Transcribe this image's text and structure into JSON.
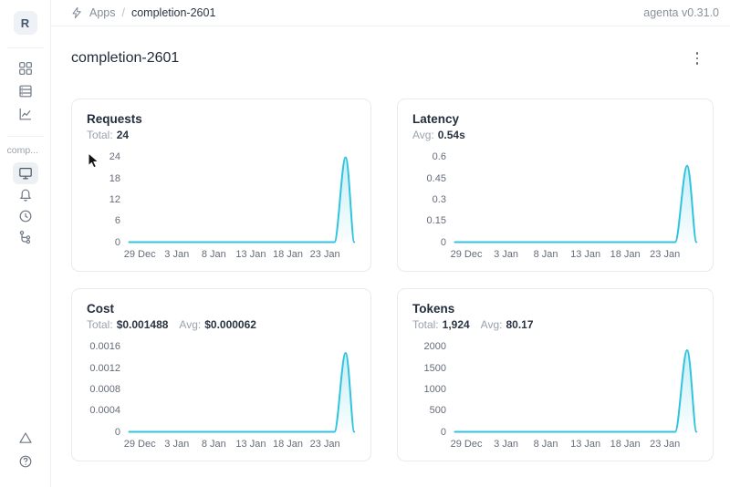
{
  "app": {
    "version_label": "agenta v0.31.0"
  },
  "breadcrumb": {
    "section": "Apps",
    "separator": "/",
    "current": "completion-2601"
  },
  "page": {
    "title": "completion-2601"
  },
  "sidebar": {
    "avatar_initial": "R",
    "app_label": "comp...",
    "icons": [
      "grid-icon",
      "list-icon",
      "line-chart-icon",
      "monitor-icon",
      "bell-icon",
      "history-icon",
      "tree-icon",
      "warning-triangle-icon",
      "help-icon"
    ],
    "selected_item": "overview"
  },
  "colors": {
    "accent_line": "#31c3de",
    "accent_fill": "rgba(49,195,222,0.22)",
    "card_border": "#e8eaee",
    "tick_text": "#646c78"
  },
  "chart_data": [
    {
      "type": "line",
      "title": "Requests",
      "stats": [
        {
          "label": "Total:",
          "value": "24"
        }
      ],
      "y_ticks": [
        "24",
        "18",
        "12",
        "6",
        "0"
      ],
      "y_max": 24,
      "x_ticks": [
        "29 Dec",
        "3 Jan",
        "8 Jan",
        "13 Jan",
        "18 Jan",
        "23 Jan"
      ],
      "points": [
        {
          "x": "28 Dec",
          "y": 0
        },
        {
          "x": "25 Jan",
          "y": 0
        },
        {
          "x": "26 Jan",
          "y": 24
        },
        {
          "x": "27 Jan",
          "y": 0
        }
      ],
      "peak": {
        "x": "26 Jan",
        "y": 24
      },
      "grid": false,
      "legend": false
    },
    {
      "type": "line",
      "title": "Latency",
      "stats": [
        {
          "label": "Avg:",
          "value": "0.54s"
        }
      ],
      "y_ticks": [
        "0.6",
        "0.45",
        "0.3",
        "0.15",
        "0"
      ],
      "y_max": 0.6,
      "x_ticks": [
        "29 Dec",
        "3 Jan",
        "8 Jan",
        "13 Jan",
        "18 Jan",
        "23 Jan"
      ],
      "points": [
        {
          "x": "28 Dec",
          "y": 0
        },
        {
          "x": "25 Jan",
          "y": 0
        },
        {
          "x": "26 Jan",
          "y": 0.54
        },
        {
          "x": "27 Jan",
          "y": 0
        }
      ],
      "peak": {
        "x": "26 Jan",
        "y": 0.54
      },
      "grid": false,
      "legend": false
    },
    {
      "type": "line",
      "title": "Cost",
      "stats": [
        {
          "label": "Total:",
          "value": "$0.001488"
        },
        {
          "label": "Avg:",
          "value": "$0.000062"
        }
      ],
      "y_ticks": [
        "0.0016",
        "0.0012",
        "0.0008",
        "0.0004",
        "0"
      ],
      "y_max": 0.0016,
      "x_ticks": [
        "29 Dec",
        "3 Jan",
        "8 Jan",
        "13 Jan",
        "18 Jan",
        "23 Jan"
      ],
      "points": [
        {
          "x": "28 Dec",
          "y": 0
        },
        {
          "x": "25 Jan",
          "y": 0
        },
        {
          "x": "26 Jan",
          "y": 0.001488
        },
        {
          "x": "27 Jan",
          "y": 0
        }
      ],
      "peak": {
        "x": "26 Jan",
        "y": 0.001488
      },
      "grid": false,
      "legend": false
    },
    {
      "type": "line",
      "title": "Tokens",
      "stats": [
        {
          "label": "Total:",
          "value": "1,924"
        },
        {
          "label": "Avg:",
          "value": "80.17"
        }
      ],
      "y_ticks": [
        "2000",
        "1500",
        "1000",
        "500",
        "0"
      ],
      "y_max": 2000,
      "x_ticks": [
        "29 Dec",
        "3 Jan",
        "8 Jan",
        "13 Jan",
        "18 Jan",
        "23 Jan"
      ],
      "points": [
        {
          "x": "28 Dec",
          "y": 0
        },
        {
          "x": "25 Jan",
          "y": 0
        },
        {
          "x": "26 Jan",
          "y": 1924
        },
        {
          "x": "27 Jan",
          "y": 0
        }
      ],
      "peak": {
        "x": "26 Jan",
        "y": 1924
      },
      "grid": false,
      "legend": false
    }
  ]
}
